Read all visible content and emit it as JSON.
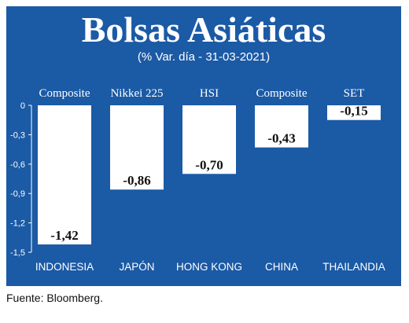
{
  "chart_data": {
    "type": "bar",
    "title": "Bolsas Asiáticas",
    "subtitle": "(% Var. día - 31-03-2021)",
    "categories": [
      "INDONESIA",
      "JAPÓN",
      "HONG KONG",
      "CHINA",
      "THAILANDIA"
    ],
    "index_names": [
      "Composite",
      "Nikkei 225",
      "HSI",
      "Composite",
      "SET"
    ],
    "values": [
      -1.42,
      -0.86,
      -0.7,
      -0.43,
      -0.15
    ],
    "value_labels": [
      "-1,42",
      "-0,86",
      "-0,70",
      "-0,43",
      "-0,15"
    ],
    "ylim": [
      -1.5,
      0
    ],
    "yticks": [
      0,
      -0.3,
      -0.6,
      -0.9,
      -1.2,
      -1.5
    ],
    "ytick_labels": [
      "0",
      "-0,3",
      "-0,6",
      "-0,9",
      "-1,2",
      "-1,5"
    ],
    "grid": false,
    "colors": {
      "background": "#1b5aa5",
      "bar": "#ffffff",
      "text": "#ffffff",
      "value_text": "#111111"
    }
  },
  "source": "Fuente: Bloomberg."
}
